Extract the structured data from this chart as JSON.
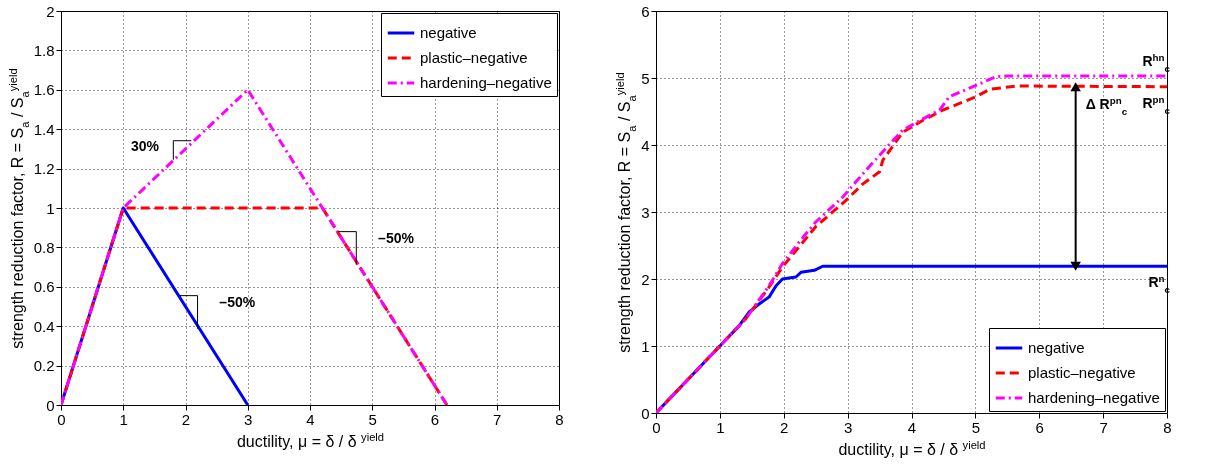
{
  "chart_data": [
    {
      "type": "line",
      "xlabel": "ductility, μ = δ / δ $^{yield}$",
      "ylabel": "strength reduction factor, R = S$_{a}$ / S$_{a}$$^{yield}$",
      "xlim": [
        0,
        8
      ],
      "ylim": [
        0,
        2
      ],
      "xticks": [
        0,
        1,
        2,
        3,
        4,
        5,
        6,
        7,
        8
      ],
      "yticks": [
        0,
        0.2,
        0.4,
        0.6,
        0.8,
        1,
        1.2,
        1.4,
        1.6,
        1.8,
        2
      ],
      "grid": true,
      "legend": "top right",
      "series": [
        {
          "name": "negative",
          "color": "#0000ff",
          "line_style": "solid",
          "x": [
            0,
            1,
            3
          ],
          "values": [
            0,
            1,
            0
          ]
        },
        {
          "name": "plastic–negative",
          "color": "#ff0000",
          "line_style": "dashed",
          "x": [
            0,
            1,
            4.2,
            6.2
          ],
          "values": [
            0,
            1,
            1,
            0
          ]
        },
        {
          "name": "hardening–negative",
          "color": "#ff00ff",
          "line_style": "dashdot",
          "x": [
            0,
            1,
            3,
            4.2,
            6.2
          ],
          "values": [
            0,
            1,
            1.6,
            1,
            0
          ]
        }
      ],
      "annotations": [
        {
          "text": "30%",
          "x": 1.8,
          "y": 1.24
        },
        {
          "text": "–50%",
          "x": 1.9,
          "y": 0.55
        },
        {
          "text": "–50%",
          "x": 4.45,
          "y": 0.875
        }
      ]
    },
    {
      "type": "line",
      "xlabel": "ductility, μ = δ / δ $^{yield}$",
      "ylabel": "strength reduction factor, R = S$_{a}$ / S$_{a}$$^{yield}$",
      "xlim": [
        0,
        8
      ],
      "ylim": [
        0,
        6
      ],
      "xticks": [
        0,
        1,
        2,
        3,
        4,
        5,
        6,
        7,
        8
      ],
      "yticks": [
        0,
        1,
        2,
        3,
        4,
        5,
        6
      ],
      "grid": true,
      "legend": "bottom right",
      "series": [
        {
          "name": "negative",
          "color": "#0000ff",
          "line_style": "solid",
          "x": [
            0,
            1,
            1.3,
            1.46,
            1.62,
            1.77,
            1.88,
            1.98,
            2.19,
            2.27,
            2.48,
            2.61,
            8
          ],
          "values": [
            0,
            1,
            1.3,
            1.51,
            1.63,
            1.73,
            1.9,
            2.0,
            2.03,
            2.1,
            2.13,
            2.19,
            2.19
          ]
        },
        {
          "name": "plastic–negative",
          "color": "#ff0000",
          "line_style": "dashed",
          "x": [
            0,
            1,
            1.4,
            1.77,
            1.98,
            2.24,
            2.5,
            2.97,
            3.24,
            3.5,
            3.55,
            3.86,
            4.18,
            4.49,
            5.01,
            5.22,
            5.64,
            8
          ],
          "values": [
            0,
            1,
            1.4,
            1.88,
            2.18,
            2.48,
            2.78,
            3.17,
            3.42,
            3.6,
            3.77,
            4.19,
            4.37,
            4.52,
            4.72,
            4.83,
            4.88,
            4.87
          ]
        },
        {
          "name": "hardening–negative",
          "color": "#ff00ff",
          "line_style": "dashdot",
          "x": [
            0,
            1,
            1.4,
            1.77,
            1.98,
            2.24,
            2.5,
            2.92,
            3.24,
            3.55,
            3.86,
            4.18,
            4.44,
            4.59,
            5.01,
            5.32,
            5.5,
            8
          ],
          "values": [
            0,
            1,
            1.4,
            1.9,
            2.23,
            2.55,
            2.85,
            3.22,
            3.57,
            3.9,
            4.22,
            4.39,
            4.52,
            4.72,
            4.89,
            5.02,
            5.03,
            5.03
          ]
        }
      ],
      "annotations": [
        {
          "text": "Δ R$^{pn}$$_{c}$",
          "x": 6.57,
          "y": 4.87
        },
        {
          "text": "R$^{hn}$$_{c}$",
          "x": 8,
          "y": 5.03
        },
        {
          "text": "R$^{pn}$$_{c}$",
          "x": 8,
          "y": 4.87
        },
        {
          "text": "R$^{n}$$_{c}$",
          "x": 8,
          "y": 2.19
        }
      ]
    }
  ]
}
